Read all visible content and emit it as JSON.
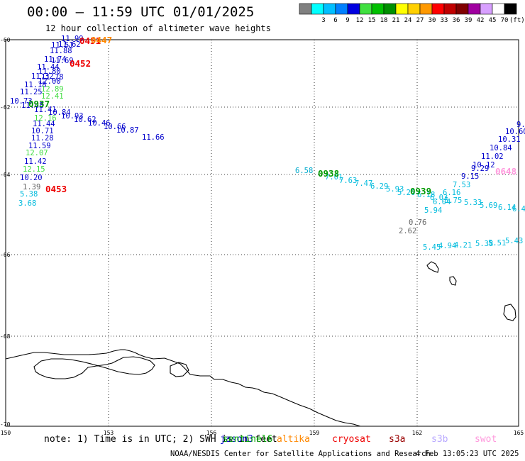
{
  "title": "00:00 – 11:59 UTC 01/01/2025",
  "subtitle": "12 hour collection of altimeter wave heights",
  "colorbar": {
    "unit": "(ft)",
    "entries": [
      {
        "color": "#808080",
        "label": ""
      },
      {
        "color": "#00ffff",
        "label": "3"
      },
      {
        "color": "#00bfff",
        "label": "6"
      },
      {
        "color": "#0080ff",
        "label": "9"
      },
      {
        "color": "#0000e0",
        "label": "12"
      },
      {
        "color": "#40e040",
        "label": "15"
      },
      {
        "color": "#00c000",
        "label": "18"
      },
      {
        "color": "#009000",
        "label": "21"
      },
      {
        "color": "#ffff00",
        "label": "24"
      },
      {
        "color": "#ffd000",
        "label": "27"
      },
      {
        "color": "#ff9900",
        "label": "30"
      },
      {
        "color": "#ff0000",
        "label": "33"
      },
      {
        "color": "#c00000",
        "label": "36"
      },
      {
        "color": "#800000",
        "label": "39"
      },
      {
        "color": "#a000a0",
        "label": "42"
      },
      {
        "color": "#d8a0ff",
        "label": "45"
      },
      {
        "color": "#ffffff",
        "label": "70"
      },
      {
        "color": "#000000",
        "label": ""
      }
    ]
  },
  "axes": {
    "lon_ticks": [
      "150",
      "153",
      "156",
      "159",
      "162",
      "165"
    ],
    "lat_ticks": [
      "-60",
      "-62",
      "-64",
      "-66",
      "-68",
      "-70"
    ]
  },
  "satellites": [
    {
      "name": "jason3",
      "color": "#0000cc"
    },
    {
      "name": "sentinel6",
      "color": "#00aa00"
    },
    {
      "name": "altika",
      "color": "#ff8800"
    },
    {
      "name": "cryosat",
      "color": "#ee0000"
    },
    {
      "name": "s3a",
      "color": "#990000"
    },
    {
      "name": "s3b",
      "color": "#b8a8ff"
    },
    {
      "name": "swot",
      "color": "#ff99dd"
    }
  ],
  "pass_times": [
    {
      "text": "0451",
      "color": "#ee0000"
    },
    {
      "text": "0452",
      "color": "#ee0000"
    },
    {
      "text": "0453",
      "color": "#ee0000"
    },
    {
      "text": "0447",
      "color": "#ff8800"
    },
    {
      "text": "0937",
      "color": "#009900"
    },
    {
      "text": "0938",
      "color": "#009900"
    },
    {
      "text": "0939",
      "color": "#009900"
    },
    {
      "text": "0648",
      "color": "#ff99dd"
    }
  ],
  "readings": [
    {
      "value": "11.99",
      "color": "#0000cc"
    },
    {
      "value": "11.51",
      "color": "#0000cc"
    },
    {
      "value": "11.62",
      "color": "#0000cc"
    },
    {
      "value": "11.88",
      "color": "#0000cc"
    },
    {
      "value": "11.69",
      "color": "#0000cc"
    },
    {
      "value": "11.74",
      "color": "#0000cc"
    },
    {
      "value": "11.44",
      "color": "#0000cc"
    },
    {
      "value": "11.80",
      "color": "#0000cc"
    },
    {
      "value": "11.32",
      "color": "#0000cc"
    },
    {
      "value": "11.78",
      "color": "#0000cc"
    },
    {
      "value": "12.00",
      "color": "#0000cc"
    },
    {
      "value": "11.18",
      "color": "#0000cc"
    },
    {
      "value": "12.89",
      "color": "#40dd40"
    },
    {
      "value": "11.25",
      "color": "#0000cc"
    },
    {
      "value": "12.41",
      "color": "#40dd40"
    },
    {
      "value": "10.73",
      "color": "#0000cc"
    },
    {
      "value": "11.48",
      "color": "#0000cc"
    },
    {
      "value": "11.41",
      "color": "#0000cc"
    },
    {
      "value": "10.84",
      "color": "#0000cc"
    },
    {
      "value": "10.93",
      "color": "#0000cc"
    },
    {
      "value": "10.62",
      "color": "#0000cc"
    },
    {
      "value": "10.46",
      "color": "#0000cc"
    },
    {
      "value": "10.66",
      "color": "#0000cc"
    },
    {
      "value": "10.87",
      "color": "#0000cc"
    },
    {
      "value": "11.66",
      "color": "#0000cc"
    },
    {
      "value": "11.44",
      "color": "#0000cc"
    },
    {
      "value": "12.16",
      "color": "#40dd40"
    },
    {
      "value": "10.71",
      "color": "#0000cc"
    },
    {
      "value": "11.28",
      "color": "#0000cc"
    },
    {
      "value": "11.59",
      "color": "#0000cc"
    },
    {
      "value": "12.07",
      "color": "#40dd40"
    },
    {
      "value": "11.42",
      "color": "#0000cc"
    },
    {
      "value": "12.15",
      "color": "#40dd40"
    },
    {
      "value": "10.20",
      "color": "#0000cc"
    },
    {
      "value": "1.39",
      "color": "#666666"
    },
    {
      "value": "5.38",
      "color": "#00bbdd"
    },
    {
      "value": "3.68",
      "color": "#00bbdd"
    },
    {
      "value": "6.58",
      "color": "#00aacc"
    },
    {
      "value": "7.01",
      "color": "#00bbdd"
    },
    {
      "value": "7.63",
      "color": "#00bbdd"
    },
    {
      "value": "7.47",
      "color": "#00bbdd"
    },
    {
      "value": "6.29",
      "color": "#00bbdd"
    },
    {
      "value": "5.93",
      "color": "#00bbdd"
    },
    {
      "value": "5.20",
      "color": "#00bbdd"
    },
    {
      "value": "6.18",
      "color": "#00bbdd"
    },
    {
      "value": "6.03",
      "color": "#00bbdd"
    },
    {
      "value": "5.75",
      "color": "#00bbdd"
    },
    {
      "value": "5.33",
      "color": "#00bbdd"
    },
    {
      "value": "5.69",
      "color": "#00bbdd"
    },
    {
      "value": "6.14",
      "color": "#00bbdd"
    },
    {
      "value": "6.43",
      "color": "#00bbdd"
    },
    {
      "value": "6.16",
      "color": "#00bbdd"
    },
    {
      "value": "7.53",
      "color": "#00bbdd"
    },
    {
      "value": "6.04",
      "color": "#00bbdd"
    },
    {
      "value": "5.94",
      "color": "#00bbdd"
    },
    {
      "value": "0.76",
      "color": "#666666"
    },
    {
      "value": "2.62",
      "color": "#666666"
    },
    {
      "value": "5.45",
      "color": "#00bbdd"
    },
    {
      "value": "4.94",
      "color": "#00bbdd"
    },
    {
      "value": "4.21",
      "color": "#00bbdd"
    },
    {
      "value": "5.38",
      "color": "#00bbdd"
    },
    {
      "value": "5.51",
      "color": "#00bbdd"
    },
    {
      "value": "5.43",
      "color": "#00bbdd"
    },
    {
      "value": "9.15",
      "color": "#0000cc"
    },
    {
      "value": "9.29",
      "color": "#0000cc"
    },
    {
      "value": "10.12",
      "color": "#0000cc"
    },
    {
      "value": "11.02",
      "color": "#0000cc"
    },
    {
      "value": "10.84",
      "color": "#0000cc"
    },
    {
      "value": "10.31",
      "color": "#0000cc"
    },
    {
      "value": "10.60",
      "color": "#0000cc"
    },
    {
      "value": "9.",
      "color": "#0000cc"
    }
  ],
  "note_prefix": "note: 1) Time is in UTC; 2) SWH is in feet",
  "credit": "NOAA/NESDIS Center for Satellite Applications and Research",
  "generated": "4 Feb 13:05:23 UTC 2025"
}
